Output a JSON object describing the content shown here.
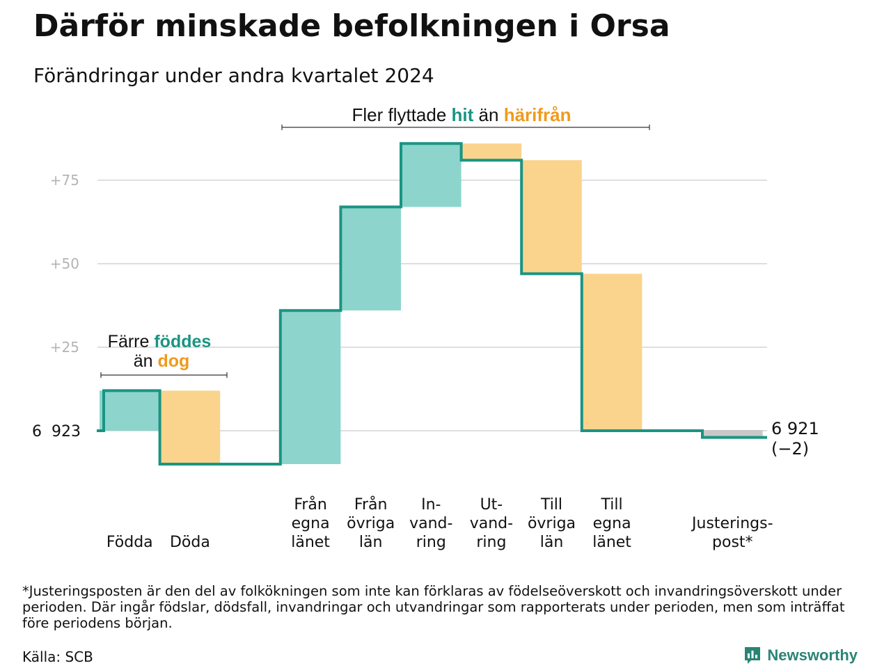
{
  "header": {
    "title": "Därför minskade befolkningen i Orsa",
    "subtitle": "Förändringar under andra kvartalet 2024"
  },
  "chart_data": {
    "type": "waterfall",
    "start": {
      "label": "6  923",
      "value": 6923
    },
    "end": {
      "label_value": "6 921",
      "label_change": "(−2)",
      "value": 6921
    },
    "y_axis": {
      "relative_to_start": true,
      "ticks": [
        "+25",
        "+50",
        "+75"
      ],
      "tick_values": [
        25,
        50,
        75
      ],
      "range": [
        -10,
        87
      ],
      "grid": true
    },
    "steps": [
      {
        "label_lines": [
          "Födda"
        ],
        "change": 12,
        "type": "in"
      },
      {
        "label_lines": [
          "Döda"
        ],
        "change": -22,
        "type": "out"
      },
      {
        "label_lines": [
          "Från",
          "egna",
          "länet"
        ],
        "change": 46,
        "type": "in"
      },
      {
        "label_lines": [
          "Från",
          "övriga",
          "län"
        ],
        "change": 31,
        "type": "in"
      },
      {
        "label_lines": [
          "In-",
          "vand-",
          "ring"
        ],
        "change": 19,
        "type": "in"
      },
      {
        "label_lines": [
          "Ut-",
          "vand-",
          "ring"
        ],
        "change": -5,
        "type": "out"
      },
      {
        "label_lines": [
          "Till",
          "övriga",
          "län"
        ],
        "change": -34,
        "type": "out"
      },
      {
        "label_lines": [
          "Till",
          "egna",
          "länet"
        ],
        "change": -47,
        "type": "out"
      },
      {
        "label_lines": [
          "Justerings-",
          "post*"
        ],
        "change": -2,
        "type": "adjust"
      }
    ],
    "annotations": {
      "births": {
        "line1_before": "Färre ",
        "line1_highlight": "föddes",
        "line2_before": "än ",
        "line2_highlight": "dog"
      },
      "migration": {
        "before": "Fler flyttade ",
        "highlight1": "hit",
        "middle": " än ",
        "highlight2": "härifrån"
      }
    },
    "colors": {
      "in": "#8dd5cc",
      "out": "#fad48c",
      "line": "#1a9483",
      "teal_text": "#1a9483",
      "orange_text": "#f09a1c",
      "grid": "#dedede",
      "adjust": "#c8c8c8"
    }
  },
  "footnote": "*Justeringsposten är den del av folkökningen som inte kan förklaras av födelseöverskott och invandringsöverskott under perioden. Där ingår födslar, dödsfall, invandringar och utvandringar som rapporterats under perioden, men som inträffat före periodens början.",
  "source": "Källa: SCB",
  "brand": {
    "name": "Newsworthy",
    "icon": "newsworthy-logo-icon"
  }
}
